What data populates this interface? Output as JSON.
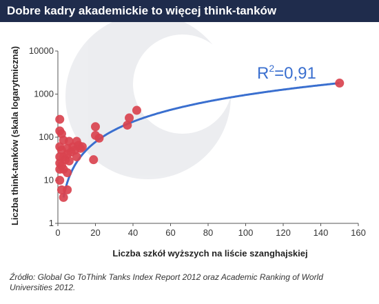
{
  "header": {
    "title": "Dobre kadry akademickie to więcej think-tanków"
  },
  "source": "Źródło: Global Go ToThink Tanks Index Report 2012 oraz Academic Ranking of World Universities 2012.",
  "colors": {
    "header_bg": "#1f2c4c",
    "points": "#d9434f",
    "trend": "#3a6fcf",
    "axis": "#555555"
  },
  "chart_data": {
    "type": "scatter",
    "title": "",
    "xlabel": "Liczba szkół wyższych na liście szanghajskiej",
    "ylabel": "Liczba think-tanków (skala logarytmiczna)",
    "xlim": [
      0,
      160
    ],
    "ylim": [
      1,
      10000
    ],
    "yscale": "log",
    "grid": false,
    "x_ticks": [
      "0",
      "20",
      "40",
      "60",
      "80",
      "100",
      "120",
      "140",
      "160"
    ],
    "y_ticks": [
      "1",
      "10",
      "100",
      "1000",
      "10000"
    ],
    "annotation": {
      "base": "R",
      "sup": "2",
      "rest": "=0,91"
    },
    "trendline": "power",
    "points": [
      [
        1,
        260
      ],
      [
        1,
        140
      ],
      [
        2,
        120
      ],
      [
        3,
        85
      ],
      [
        1,
        60
      ],
      [
        2,
        50
      ],
      [
        1,
        35
      ],
      [
        3,
        35
      ],
      [
        1,
        25
      ],
      [
        2,
        22
      ],
      [
        1,
        18
      ],
      [
        3,
        18
      ],
      [
        5,
        55
      ],
      [
        6,
        80
      ],
      [
        4,
        30
      ],
      [
        5,
        40
      ],
      [
        7,
        45
      ],
      [
        8,
        60
      ],
      [
        6,
        28
      ],
      [
        10,
        80
      ],
      [
        10,
        35
      ],
      [
        12,
        55
      ],
      [
        13,
        60
      ],
      [
        9,
        50
      ],
      [
        11,
        65
      ],
      [
        5,
        15
      ],
      [
        1,
        10
      ],
      [
        2,
        6
      ],
      [
        5,
        6
      ],
      [
        3,
        4
      ],
      [
        20,
        175
      ],
      [
        20,
        110
      ],
      [
        22,
        95
      ],
      [
        19,
        30
      ],
      [
        37,
        190
      ],
      [
        38,
        280
      ],
      [
        42,
        420
      ],
      [
        150,
        1800
      ]
    ]
  }
}
